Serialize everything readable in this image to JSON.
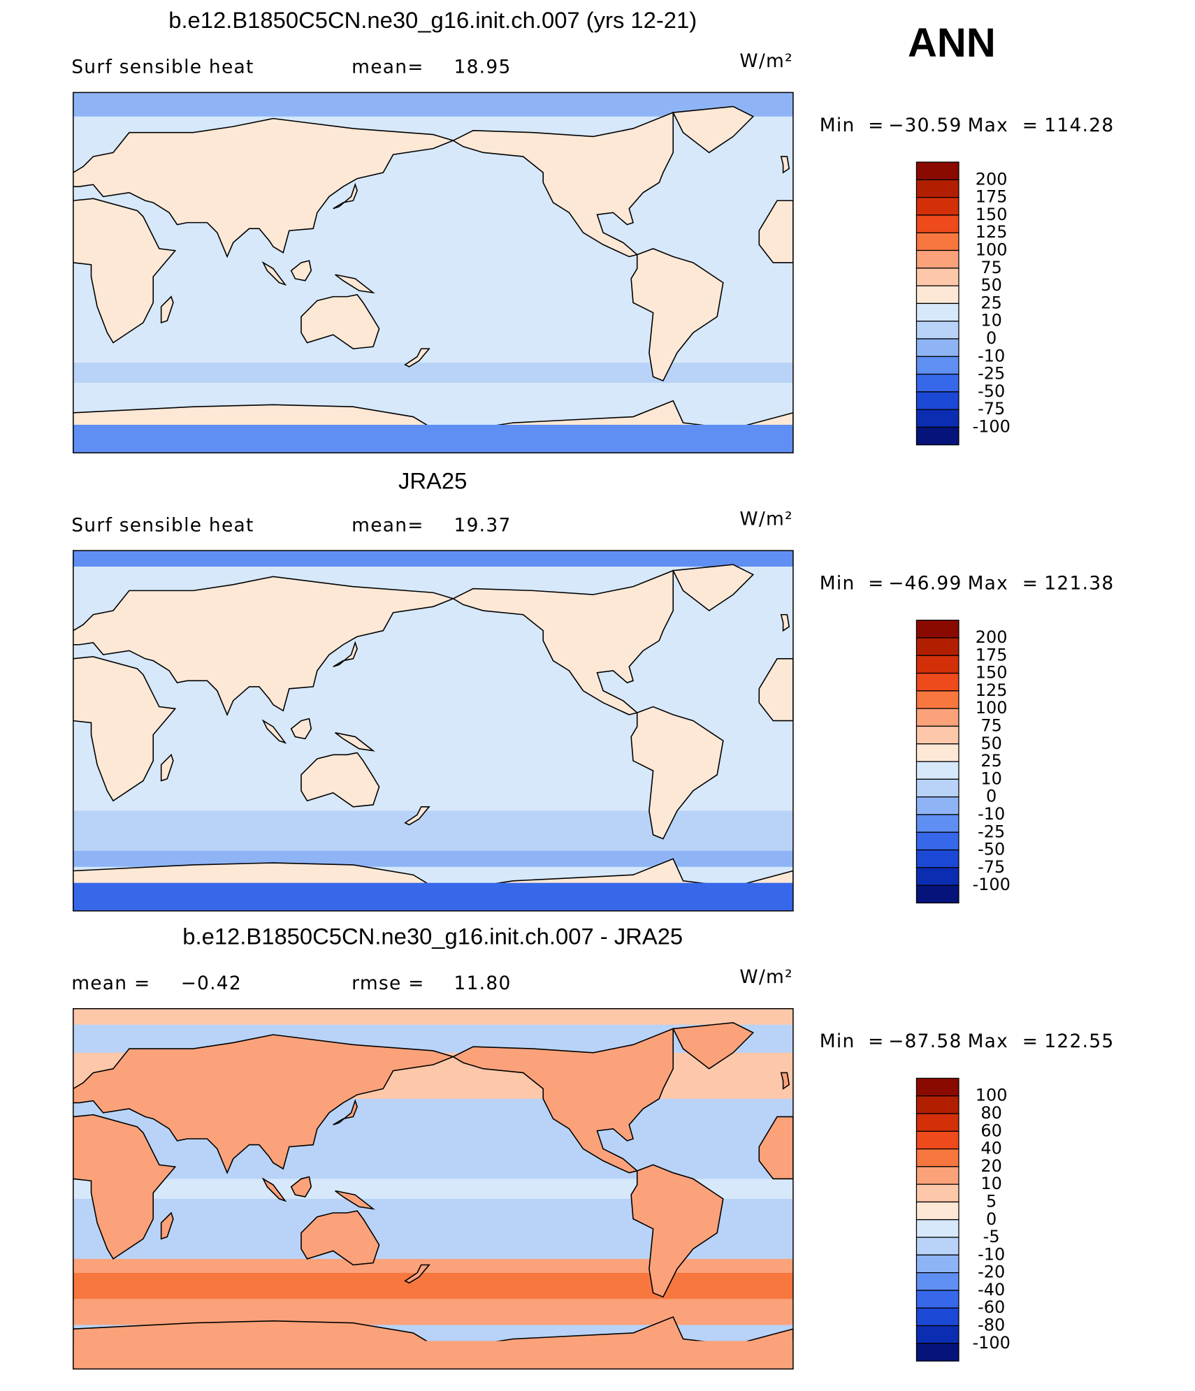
{
  "title": "ANN",
  "panels": [
    {
      "title": "b.e12.B1850C5CN.ne30_g16.init.ch.007 (yrs 12-21)",
      "left_label": "Surf sensible heat",
      "center_label": "mean=",
      "center_value": "18.95",
      "units": "W/m²",
      "min_label": "Min",
      "min_eq": "=",
      "min": "−30.59",
      "max_label": "Max",
      "max_eq": "=",
      "max": "114.28",
      "colorbar": {
        "levels": [
          200,
          175,
          150,
          125,
          100,
          75,
          50,
          25,
          10,
          0,
          -10,
          -25,
          -50,
          -75,
          -100
        ],
        "colors": [
          "#8b0a00",
          "#b21f00",
          "#d3300a",
          "#ef4a1c",
          "#f7773e",
          "#fba27a",
          "#fdc8aa",
          "#fde8d6",
          "#d6e8fa",
          "#b8d3f7",
          "#8fb4f6",
          "#5f8ff2",
          "#3768ea",
          "#1c48d6",
          "#0b2db2",
          "#05137a"
        ]
      }
    },
    {
      "title": "JRA25",
      "left_label": "Surf sensible heat",
      "center_label": "mean=",
      "center_value": "19.37",
      "units": "W/m²",
      "min_label": "Min",
      "min_eq": "=",
      "min": "−46.99",
      "max_label": "Max",
      "max_eq": "=",
      "max": "121.38",
      "colorbar": {
        "levels": [
          200,
          175,
          150,
          125,
          100,
          75,
          50,
          25,
          10,
          0,
          -10,
          -25,
          -50,
          -75,
          -100
        ],
        "colors": [
          "#8b0a00",
          "#b21f00",
          "#d3300a",
          "#ef4a1c",
          "#f7773e",
          "#fba27a",
          "#fdc8aa",
          "#fde8d6",
          "#d6e8fa",
          "#b8d3f7",
          "#8fb4f6",
          "#5f8ff2",
          "#3768ea",
          "#1c48d6",
          "#0b2db2",
          "#05137a"
        ]
      }
    },
    {
      "title": "b.e12.B1850C5CN.ne30_g16.init.ch.007 - JRA25",
      "left_label": "mean =",
      "left_value": "−0.42",
      "center_label": "rmse =",
      "center_value": "11.80",
      "units": "W/m²",
      "min_label": "Min",
      "min_eq": "=",
      "min": "−87.58",
      "max_label": "Max",
      "max_eq": "=",
      "max": "122.55",
      "colorbar": {
        "levels": [
          100,
          80,
          60,
          40,
          20,
          10,
          5,
          0,
          -5,
          -10,
          -20,
          -40,
          -60,
          -80,
          -100
        ],
        "colors": [
          "#8b0a00",
          "#b21f00",
          "#d3300a",
          "#ef4a1c",
          "#f7773e",
          "#fba27a",
          "#fdc8aa",
          "#fde8d6",
          "#d6e8fa",
          "#b8d3f7",
          "#8fb4f6",
          "#5f8ff2",
          "#3768ea",
          "#1c48d6",
          "#0b2db2",
          "#05137a"
        ]
      }
    }
  ]
}
